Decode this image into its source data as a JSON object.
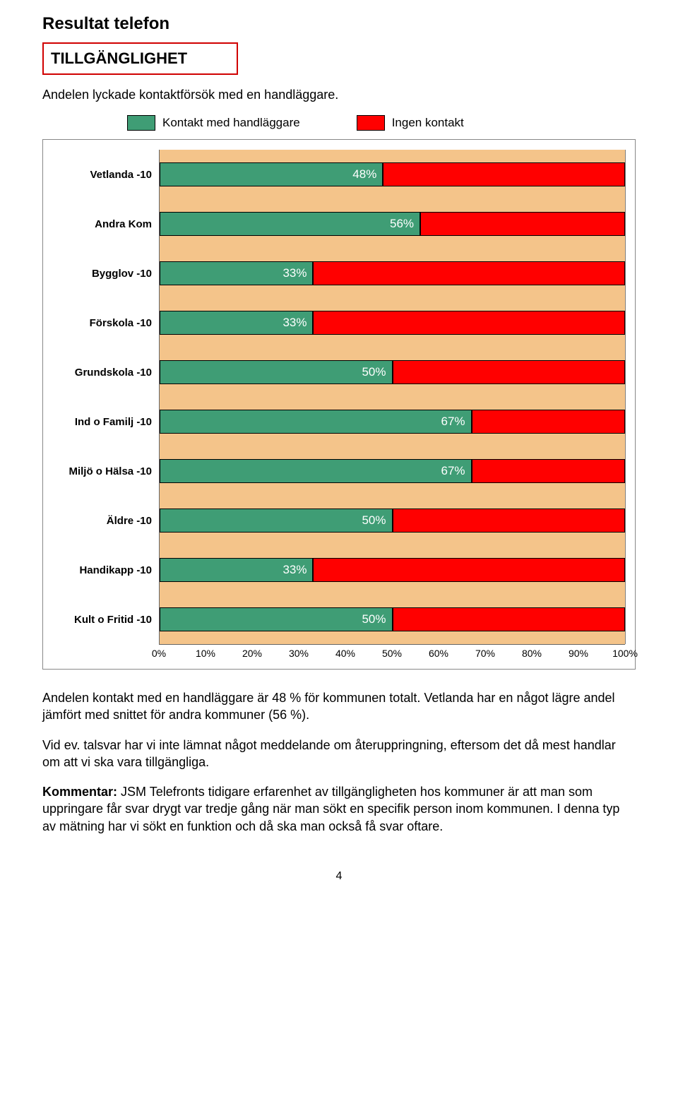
{
  "title": "Resultat telefon",
  "subtitle": "TILLGÄNGLIGHET",
  "intro": "Andelen lyckade kontaktförsök med en handläggare.",
  "legend": {
    "series1": {
      "label": "Kontakt med handläggare",
      "color": "#3f9d75"
    },
    "series2": {
      "label": "Ingen kontakt",
      "color": "#ff0000"
    }
  },
  "chart": {
    "type": "stacked-horizontal-bar",
    "background_fill": "#f4c48a",
    "grid_color": "#808080",
    "x_ticks": [
      0,
      10,
      20,
      30,
      40,
      50,
      60,
      70,
      80,
      90,
      100
    ],
    "x_tick_labels": [
      "0%",
      "10%",
      "20%",
      "30%",
      "40%",
      "50%",
      "60%",
      "70%",
      "80%",
      "90%",
      "100%"
    ],
    "rows": [
      {
        "label": "Vetlanda -10",
        "green": 48,
        "green_label": "48%"
      },
      {
        "label": "Andra Kom",
        "green": 56,
        "green_label": "56%"
      },
      {
        "label": "Bygglov -10",
        "green": 33,
        "green_label": "33%"
      },
      {
        "label": "Förskola -10",
        "green": 33,
        "green_label": "33%"
      },
      {
        "label": "Grundskola -10",
        "green": 50,
        "green_label": "50%"
      },
      {
        "label": "Ind o Familj -10",
        "green": 67,
        "green_label": "67%"
      },
      {
        "label": "Miljö o Hälsa -10",
        "green": 67,
        "green_label": "67%"
      },
      {
        "label": "Äldre -10",
        "green": 50,
        "green_label": "50%"
      },
      {
        "label": "Handikapp -10",
        "green": 33,
        "green_label": "33%"
      },
      {
        "label": "Kult o Fritid -10",
        "green": 50,
        "green_label": "50%"
      }
    ]
  },
  "para1": "Andelen kontakt med en handläggare är 48 % för kommunen totalt. Vetlanda har en något lägre andel jämfört med snittet för andra kommuner (56 %).",
  "para2": "Vid ev. talsvar har vi inte lämnat något meddelande om återuppringning, eftersom det då mest handlar om att vi ska vara tillgängliga.",
  "para3_lead": "Kommentar:",
  "para3_rest": " JSM Telefronts tidigare erfarenhet av tillgängligheten hos kommuner är att man som uppringare får svar drygt var tredje gång när man sökt en specifik person inom kommunen. I denna typ av mätning har vi sökt en funktion och då ska man också få svar oftare.",
  "page_number": "4"
}
